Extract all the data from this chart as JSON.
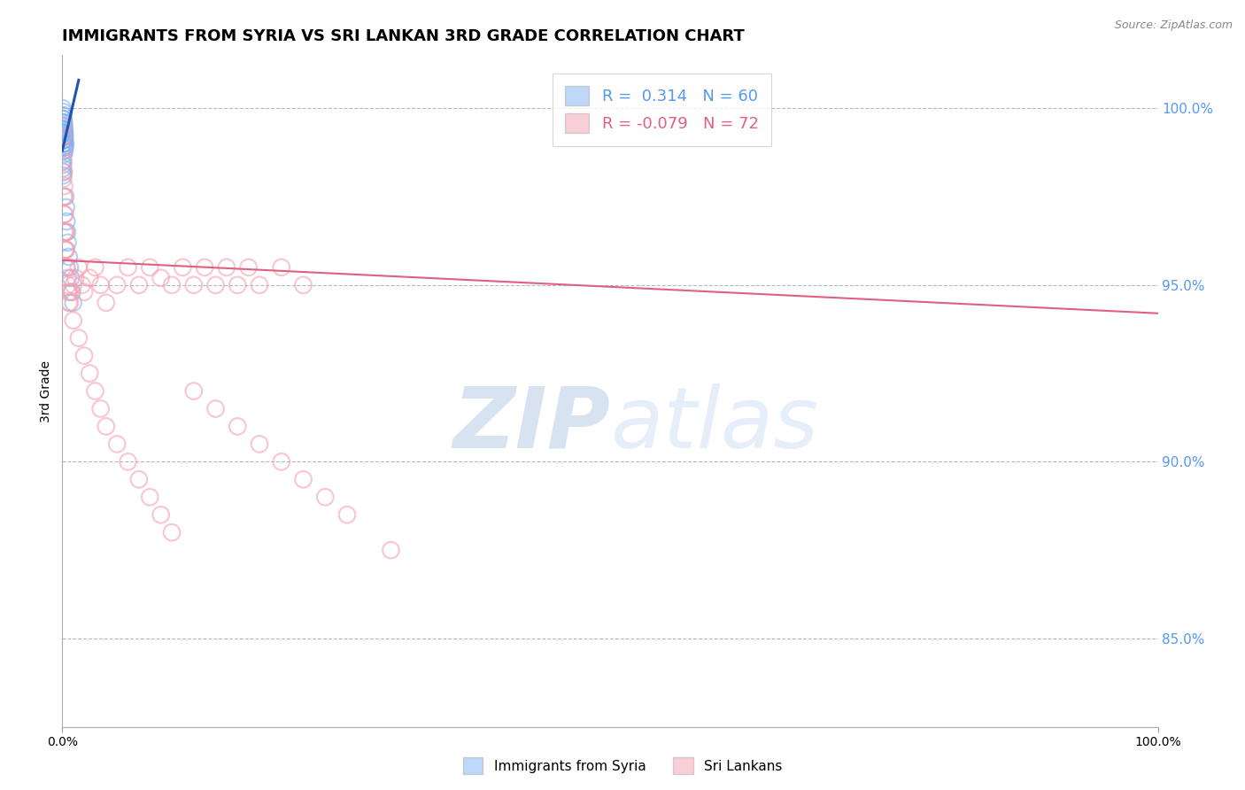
{
  "title": "IMMIGRANTS FROM SYRIA VS SRI LANKAN 3RD GRADE CORRELATION CHART",
  "source_text": "Source: ZipAtlas.com",
  "ylabel": "3rd Grade",
  "xlim": [
    0.0,
    100.0
  ],
  "ylim": [
    82.5,
    101.5
  ],
  "yticks": [
    85.0,
    90.0,
    95.0,
    100.0
  ],
  "xtick_labels": [
    "0.0%",
    "100.0%"
  ],
  "ytick_labels": [
    "85.0%",
    "90.0%",
    "95.0%",
    "100.0%"
  ],
  "blue_scatter_x": [
    0.05,
    0.08,
    0.1,
    0.12,
    0.15,
    0.18,
    0.2,
    0.22,
    0.25,
    0.3,
    0.05,
    0.07,
    0.09,
    0.11,
    0.13,
    0.15,
    0.17,
    0.19,
    0.21,
    0.24,
    0.05,
    0.06,
    0.08,
    0.1,
    0.12,
    0.14,
    0.16,
    0.18,
    0.2,
    0.22,
    0.05,
    0.06,
    0.07,
    0.08,
    0.09,
    0.1,
    0.11,
    0.12,
    0.13,
    0.14,
    0.05,
    0.06,
    0.07,
    0.08,
    0.09,
    0.05,
    0.06,
    0.07,
    0.08,
    0.09,
    0.3,
    0.35,
    0.4,
    0.45,
    0.5,
    0.6,
    0.7,
    0.8,
    0.9,
    1.0
  ],
  "blue_scatter_y": [
    100.0,
    99.9,
    99.8,
    99.7,
    99.6,
    99.5,
    99.4,
    99.3,
    99.2,
    99.0,
    99.8,
    99.7,
    99.6,
    99.5,
    99.4,
    99.3,
    99.2,
    99.1,
    99.0,
    98.9,
    99.7,
    99.6,
    99.5,
    99.4,
    99.3,
    99.2,
    99.1,
    99.0,
    98.9,
    98.8,
    99.6,
    99.5,
    99.4,
    99.3,
    99.2,
    99.1,
    99.0,
    98.9,
    98.8,
    98.7,
    99.3,
    99.2,
    99.1,
    99.0,
    98.9,
    98.5,
    98.4,
    98.3,
    98.2,
    98.1,
    97.5,
    97.2,
    96.8,
    96.5,
    96.2,
    95.8,
    95.5,
    95.2,
    94.8,
    94.5
  ],
  "pink_scatter_x": [
    0.05,
    0.08,
    0.1,
    0.12,
    0.15,
    0.18,
    0.2,
    0.25,
    0.3,
    0.35,
    0.4,
    0.5,
    0.6,
    0.7,
    0.8,
    1.0,
    1.2,
    1.5,
    1.8,
    2.0,
    2.5,
    3.0,
    3.5,
    4.0,
    5.0,
    6.0,
    7.0,
    8.0,
    9.0,
    10.0,
    11.0,
    12.0,
    13.0,
    14.0,
    15.0,
    16.0,
    17.0,
    18.0,
    20.0,
    22.0,
    0.08,
    0.12,
    0.16,
    0.2,
    0.25,
    0.3,
    0.35,
    0.4,
    0.5,
    0.6,
    1.0,
    1.5,
    2.0,
    2.5,
    3.0,
    3.5,
    4.0,
    5.0,
    6.0,
    7.0,
    8.0,
    9.0,
    10.0,
    12.0,
    14.0,
    16.0,
    18.0,
    20.0,
    22.0,
    24.0,
    26.0,
    30.0
  ],
  "pink_scatter_y": [
    99.5,
    99.2,
    98.8,
    98.5,
    98.2,
    97.8,
    97.5,
    97.0,
    96.5,
    96.0,
    95.5,
    95.2,
    94.8,
    94.5,
    94.8,
    95.0,
    95.2,
    95.5,
    95.0,
    94.8,
    95.2,
    95.5,
    95.0,
    94.5,
    95.0,
    95.5,
    95.0,
    95.5,
    95.2,
    95.0,
    95.5,
    95.0,
    95.5,
    95.0,
    95.5,
    95.0,
    95.5,
    95.0,
    95.5,
    95.0,
    98.0,
    97.5,
    97.0,
    96.5,
    96.0,
    96.5,
    96.0,
    95.5,
    95.0,
    94.5,
    94.0,
    93.5,
    93.0,
    92.5,
    92.0,
    91.5,
    91.0,
    90.5,
    90.0,
    89.5,
    89.0,
    88.5,
    88.0,
    92.0,
    91.5,
    91.0,
    90.5,
    90.0,
    89.5,
    89.0,
    88.5,
    87.5
  ],
  "blue_line_x": [
    0.0,
    1.5
  ],
  "blue_line_y": [
    98.8,
    100.8
  ],
  "pink_line_x": [
    0.0,
    100.0
  ],
  "pink_line_y": [
    95.7,
    94.2
  ],
  "blue_color": "#7fb3f5",
  "blue_line_color": "#2255aa",
  "pink_color": "#f4a0b0",
  "pink_line_color": "#e06080",
  "grid_color": "#b0b8cc",
  "watermark_color": "#c8daf5",
  "background_color": "#ffffff",
  "title_fontsize": 13,
  "axis_label_fontsize": 10,
  "tick_fontsize": 10,
  "right_tick_color": "#5599ee"
}
